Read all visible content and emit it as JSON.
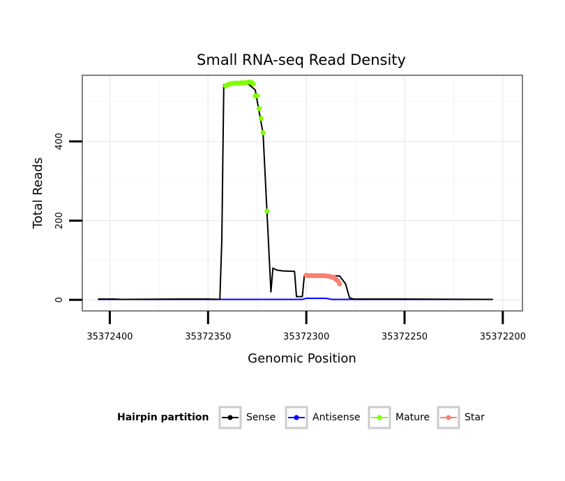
{
  "chart_data": {
    "type": "line",
    "title": "Small RNA-seq Read Density",
    "xlabel": "Genomic Position",
    "ylabel": "Total Reads",
    "x_reversed": true,
    "xlim": [
      35372414,
      35372190
    ],
    "ylim": [
      -28,
      567
    ],
    "x_ticks": [
      35372400,
      35372350,
      35372300,
      35372250,
      35372200
    ],
    "y_ticks": [
      0,
      200,
      400
    ],
    "grid": true,
    "legend": {
      "title": "Hairpin partition",
      "position": "bottom",
      "entries": [
        {
          "name": "Sense",
          "color": "#000000"
        },
        {
          "name": "Antisense",
          "color": "#0000ff"
        },
        {
          "name": "Mature",
          "color": "#7fff00"
        },
        {
          "name": "Star",
          "color": "#fa8072"
        }
      ]
    },
    "series": [
      {
        "name": "Sense",
        "color": "#000000",
        "markers": false,
        "points": [
          [
            35372406,
            2
          ],
          [
            35372398,
            2
          ],
          [
            35372394,
            1
          ],
          [
            35372365,
            2
          ],
          [
            35372350,
            2
          ],
          [
            35372344,
            1
          ],
          [
            35372343,
            150
          ],
          [
            35372342,
            543
          ],
          [
            35372330,
            547
          ],
          [
            35372326,
            530
          ],
          [
            35372322,
            420
          ],
          [
            35372320,
            220
          ],
          [
            35372318,
            20
          ],
          [
            35372317,
            80
          ],
          [
            35372315,
            75
          ],
          [
            35372312,
            73
          ],
          [
            35372306,
            72
          ],
          [
            35372305,
            8
          ],
          [
            35372302,
            8
          ],
          [
            35372301,
            62
          ],
          [
            35372290,
            62
          ],
          [
            35372283,
            60
          ],
          [
            35372280,
            40
          ],
          [
            35372278,
            5
          ],
          [
            35372276,
            2
          ],
          [
            35372250,
            2
          ],
          [
            35372205,
            1
          ]
        ]
      },
      {
        "name": "Antisense",
        "color": "#0000ff",
        "markers": false,
        "points": [
          [
            35372406,
            1
          ],
          [
            35372302,
            1
          ],
          [
            35372300,
            4
          ],
          [
            35372290,
            4
          ],
          [
            35372287,
            1
          ],
          [
            35372205,
            1
          ]
        ]
      },
      {
        "name": "Mature",
        "color": "#7fff00",
        "markers": true,
        "points": [
          [
            35372341,
            540
          ],
          [
            35372340,
            543
          ],
          [
            35372339,
            545
          ],
          [
            35372338,
            546
          ],
          [
            35372337,
            547
          ],
          [
            35372336,
            547
          ],
          [
            35372335,
            547
          ],
          [
            35372334,
            547
          ],
          [
            35372333,
            548
          ],
          [
            35372332,
            548
          ],
          [
            35372331,
            548
          ],
          [
            35372330,
            549
          ],
          [
            35372329,
            550
          ],
          [
            35372328,
            549
          ],
          [
            35372327,
            545
          ],
          [
            35372326,
            515
          ],
          [
            35372325,
            515
          ],
          [
            35372324,
            483
          ],
          [
            35372323,
            458
          ],
          [
            35372322,
            422
          ],
          [
            35372320,
            224
          ]
        ]
      },
      {
        "name": "Star",
        "color": "#fa8072",
        "markers": true,
        "points": [
          [
            35372300,
            62
          ],
          [
            35372299,
            61
          ],
          [
            35372298,
            61
          ],
          [
            35372297,
            61
          ],
          [
            35372296,
            61
          ],
          [
            35372295,
            61
          ],
          [
            35372294,
            61
          ],
          [
            35372293,
            61
          ],
          [
            35372292,
            61
          ],
          [
            35372291,
            61
          ],
          [
            35372290,
            60
          ],
          [
            35372289,
            60
          ],
          [
            35372288,
            59
          ],
          [
            35372287,
            57
          ],
          [
            35372286,
            57
          ],
          [
            35372285,
            52
          ],
          [
            35372284,
            48
          ],
          [
            35372283,
            40
          ]
        ]
      }
    ]
  }
}
